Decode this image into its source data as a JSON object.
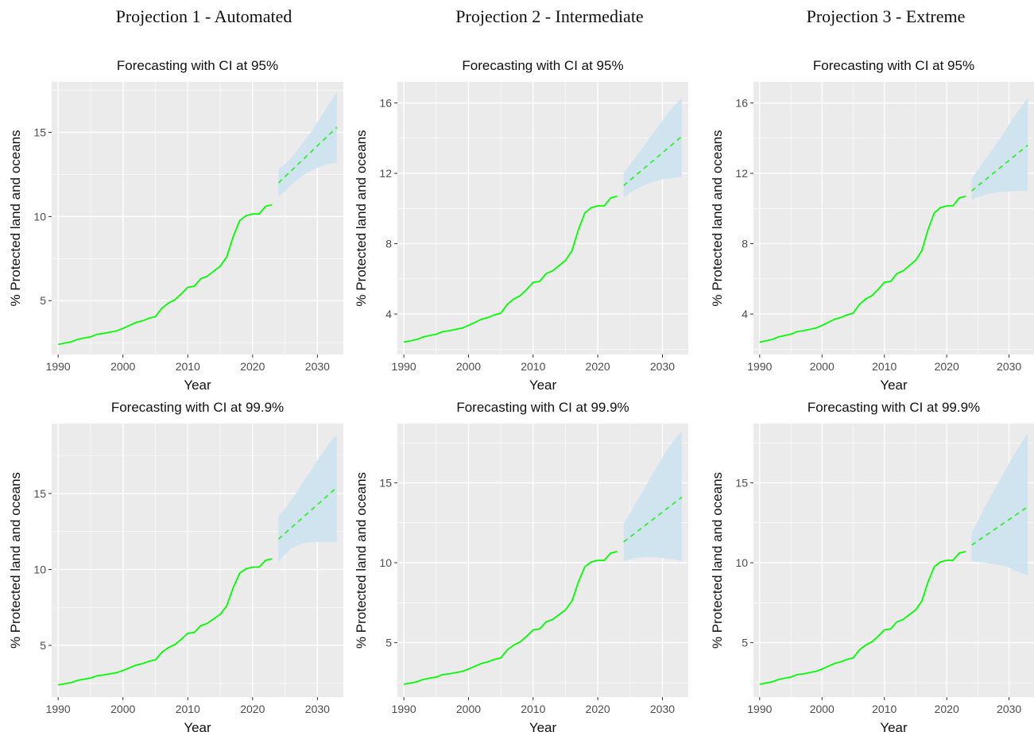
{
  "column_titles": [
    "Projection 1 - Automated",
    "Projection 2 - Intermediate",
    "Projection 3 - Extreme"
  ],
  "colors": {
    "panel_bg": "#ebebeb",
    "grid": "#ffffff",
    "observed_line": "#00ff00",
    "forecast_line": "#33ee33",
    "ci_band": "#cde4ee"
  },
  "chart_data": [
    {
      "type": "line",
      "title": "Forecasting with CI at 95%",
      "xlabel": "Year",
      "ylabel": "% Protected land and oceans",
      "xlim": [
        1989,
        2034
      ],
      "ylim": [
        1.8,
        18.0
      ],
      "xticks": [
        1990,
        2000,
        2010,
        2020,
        2030
      ],
      "yticks": [
        5,
        10,
        15
      ],
      "grid": true,
      "series": [
        {
          "x": [
            1990,
            1992,
            1993,
            1995,
            1996,
            1997,
            1999,
            2000,
            2002,
            2003,
            2004,
            2005,
            2006,
            2007,
            2008,
            2009,
            2010,
            2011,
            2012,
            2013,
            2014,
            2015,
            2016,
            2017,
            2018,
            2019,
            2020,
            2021,
            2022,
            2023
          ],
          "values": [
            2.4,
            2.55,
            2.7,
            2.85,
            3.0,
            3.05,
            3.2,
            3.35,
            3.7,
            3.8,
            3.95,
            4.05,
            4.55,
            4.85,
            5.05,
            5.4,
            5.8,
            5.85,
            6.3,
            6.45,
            6.75,
            7.05,
            7.6,
            8.8,
            9.75,
            10.05,
            10.15,
            10.15,
            10.6,
            10.7
          ]
        },
        {
          "x": [
            2024,
            2033
          ],
          "values": [
            12.0,
            15.3
          ]
        },
        {
          "x": [
            2024,
            2025,
            2026,
            2027,
            2028,
            2029,
            2030,
            2031,
            2032,
            2033
          ],
          "values": [
            12.8,
            13.1,
            13.5,
            14.0,
            14.5,
            15.0,
            15.6,
            16.2,
            16.8,
            17.4
          ]
        },
        {
          "x": [
            2024,
            2025,
            2026,
            2027,
            2028,
            2029,
            2030,
            2031,
            2032,
            2033
          ],
          "values": [
            11.2,
            11.5,
            11.9,
            12.2,
            12.5,
            12.7,
            12.9,
            13.05,
            13.15,
            13.2
          ]
        }
      ]
    },
    {
      "type": "line",
      "title": "Forecasting with CI at 95%",
      "xlabel": "Year",
      "ylabel": "% Protected land and oceans",
      "xlim": [
        1989,
        2034
      ],
      "ylim": [
        1.7,
        17.2
      ],
      "xticks": [
        1990,
        2000,
        2010,
        2020,
        2030
      ],
      "yticks": [
        4,
        8,
        12,
        16
      ],
      "grid": true,
      "series": [
        {
          "x": [
            1990,
            1992,
            1993,
            1995,
            1996,
            1997,
            1999,
            2000,
            2002,
            2003,
            2004,
            2005,
            2006,
            2007,
            2008,
            2009,
            2010,
            2011,
            2012,
            2013,
            2014,
            2015,
            2016,
            2017,
            2018,
            2019,
            2020,
            2021,
            2022,
            2023
          ],
          "values": [
            2.4,
            2.55,
            2.7,
            2.85,
            3.0,
            3.05,
            3.2,
            3.35,
            3.7,
            3.8,
            3.95,
            4.05,
            4.55,
            4.85,
            5.05,
            5.4,
            5.8,
            5.85,
            6.3,
            6.45,
            6.75,
            7.05,
            7.6,
            8.8,
            9.75,
            10.05,
            10.15,
            10.15,
            10.6,
            10.7
          ]
        },
        {
          "x": [
            2024,
            2033
          ],
          "values": [
            11.3,
            14.1
          ]
        },
        {
          "x": [
            2024,
            2025,
            2026,
            2027,
            2028,
            2029,
            2030,
            2031,
            2032,
            2033
          ],
          "values": [
            12.0,
            12.5,
            13.0,
            13.5,
            14.0,
            14.5,
            15.0,
            15.5,
            15.9,
            16.3
          ]
        },
        {
          "x": [
            2024,
            2025,
            2026,
            2027,
            2028,
            2029,
            2030,
            2031,
            2032,
            2033
          ],
          "values": [
            10.6,
            10.9,
            11.1,
            11.3,
            11.45,
            11.55,
            11.65,
            11.7,
            11.75,
            11.8
          ]
        }
      ]
    },
    {
      "type": "line",
      "title": "Forecasting with CI at 95%",
      "xlabel": "Year",
      "ylabel": "% Protected land and oceans",
      "xlim": [
        1989,
        2034
      ],
      "ylim": [
        1.7,
        17.2
      ],
      "xticks": [
        1990,
        2000,
        2010,
        2020,
        2030
      ],
      "yticks": [
        4,
        8,
        12,
        16
      ],
      "grid": true,
      "series": [
        {
          "x": [
            1990,
            1992,
            1993,
            1995,
            1996,
            1997,
            1999,
            2000,
            2002,
            2003,
            2004,
            2005,
            2006,
            2007,
            2008,
            2009,
            2010,
            2011,
            2012,
            2013,
            2014,
            2015,
            2016,
            2017,
            2018,
            2019,
            2020,
            2021,
            2022,
            2023
          ],
          "values": [
            2.4,
            2.55,
            2.7,
            2.85,
            3.0,
            3.05,
            3.2,
            3.35,
            3.7,
            3.8,
            3.95,
            4.05,
            4.55,
            4.85,
            5.05,
            5.4,
            5.8,
            5.85,
            6.3,
            6.45,
            6.75,
            7.05,
            7.6,
            8.8,
            9.75,
            10.05,
            10.15,
            10.15,
            10.6,
            10.7
          ]
        },
        {
          "x": [
            2024,
            2033
          ],
          "values": [
            11.0,
            13.6
          ]
        },
        {
          "x": [
            2024,
            2025,
            2026,
            2027,
            2028,
            2029,
            2030,
            2031,
            2032,
            2033
          ],
          "values": [
            11.7,
            12.2,
            12.7,
            13.2,
            13.7,
            14.2,
            14.8,
            15.3,
            15.8,
            16.3
          ]
        },
        {
          "x": [
            2024,
            2025,
            2026,
            2027,
            2028,
            2029,
            2030,
            2031,
            2032,
            2033
          ],
          "values": [
            10.5,
            10.65,
            10.75,
            10.85,
            10.9,
            10.95,
            10.97,
            11.0,
            11.0,
            11.0
          ]
        }
      ]
    },
    {
      "type": "line",
      "title": "Forecasting with CI at 99.9%",
      "xlabel": "Year",
      "ylabel": "% Protected land and oceans",
      "xlim": [
        1989,
        2034
      ],
      "ylim": [
        1.6,
        19.6
      ],
      "xticks": [
        1990,
        2000,
        2010,
        2020,
        2030
      ],
      "yticks": [
        5,
        10,
        15
      ],
      "grid": true,
      "series": [
        {
          "x": [
            1990,
            1992,
            1993,
            1995,
            1996,
            1997,
            1999,
            2000,
            2002,
            2003,
            2004,
            2005,
            2006,
            2007,
            2008,
            2009,
            2010,
            2011,
            2012,
            2013,
            2014,
            2015,
            2016,
            2017,
            2018,
            2019,
            2020,
            2021,
            2022,
            2023
          ],
          "values": [
            2.4,
            2.55,
            2.7,
            2.85,
            3.0,
            3.05,
            3.2,
            3.35,
            3.7,
            3.8,
            3.95,
            4.05,
            4.55,
            4.85,
            5.05,
            5.4,
            5.8,
            5.85,
            6.3,
            6.45,
            6.75,
            7.05,
            7.6,
            8.8,
            9.75,
            10.05,
            10.15,
            10.15,
            10.6,
            10.7
          ]
        },
        {
          "x": [
            2024,
            2033
          ],
          "values": [
            12.0,
            15.4
          ]
        },
        {
          "x": [
            2024,
            2025,
            2026,
            2027,
            2028,
            2029,
            2030,
            2031,
            2032,
            2033
          ],
          "values": [
            13.5,
            14.0,
            14.6,
            15.2,
            15.9,
            16.5,
            17.2,
            17.8,
            18.4,
            18.9
          ]
        },
        {
          "x": [
            2024,
            2025,
            2026,
            2027,
            2028,
            2029,
            2030,
            2031,
            2032,
            2033
          ],
          "values": [
            10.5,
            11.0,
            11.4,
            11.6,
            11.75,
            11.8,
            11.8,
            11.8,
            11.8,
            11.8
          ]
        }
      ]
    },
    {
      "type": "line",
      "title": "Forecasting with CI at 99.9%",
      "xlabel": "Year",
      "ylabel": "% Protected land and oceans",
      "xlim": [
        1989,
        2034
      ],
      "ylim": [
        1.6,
        18.7
      ],
      "xticks": [
        1990,
        2000,
        2010,
        2020,
        2030
      ],
      "yticks": [
        5,
        10,
        15
      ],
      "grid": true,
      "series": [
        {
          "x": [
            1990,
            1992,
            1993,
            1995,
            1996,
            1997,
            1999,
            2000,
            2002,
            2003,
            2004,
            2005,
            2006,
            2007,
            2008,
            2009,
            2010,
            2011,
            2012,
            2013,
            2014,
            2015,
            2016,
            2017,
            2018,
            2019,
            2020,
            2021,
            2022,
            2023
          ],
          "values": [
            2.4,
            2.55,
            2.7,
            2.85,
            3.0,
            3.05,
            3.2,
            3.35,
            3.7,
            3.8,
            3.95,
            4.05,
            4.55,
            4.85,
            5.05,
            5.4,
            5.8,
            5.85,
            6.3,
            6.45,
            6.75,
            7.05,
            7.6,
            8.8,
            9.75,
            10.05,
            10.15,
            10.15,
            10.6,
            10.7
          ]
        },
        {
          "x": [
            2024,
            2033
          ],
          "values": [
            11.3,
            14.1
          ]
        },
        {
          "x": [
            2024,
            2025,
            2026,
            2027,
            2028,
            2029,
            2030,
            2031,
            2032,
            2033
          ],
          "values": [
            12.5,
            13.1,
            13.8,
            14.5,
            15.2,
            15.9,
            16.6,
            17.2,
            17.8,
            18.2
          ]
        },
        {
          "x": [
            2024,
            2025,
            2026,
            2027,
            2028,
            2029,
            2030,
            2031,
            2032,
            2033
          ],
          "values": [
            10.1,
            10.2,
            10.3,
            10.35,
            10.35,
            10.35,
            10.3,
            10.25,
            10.2,
            10.1
          ]
        }
      ]
    },
    {
      "type": "line",
      "title": "Forecasting with CI at 99.9%",
      "xlabel": "Year",
      "ylabel": "% Protected land and oceans",
      "xlim": [
        1989,
        2034
      ],
      "ylim": [
        1.6,
        18.7
      ],
      "xticks": [
        1990,
        2000,
        2010,
        2020,
        2030
      ],
      "yticks": [
        5,
        10,
        15
      ],
      "grid": true,
      "series": [
        {
          "x": [
            1990,
            1992,
            1993,
            1995,
            1996,
            1997,
            1999,
            2000,
            2002,
            2003,
            2004,
            2005,
            2006,
            2007,
            2008,
            2009,
            2010,
            2011,
            2012,
            2013,
            2014,
            2015,
            2016,
            2017,
            2018,
            2019,
            2020,
            2021,
            2022,
            2023
          ],
          "values": [
            2.4,
            2.55,
            2.7,
            2.85,
            3.0,
            3.05,
            3.2,
            3.35,
            3.7,
            3.8,
            3.95,
            4.05,
            4.55,
            4.85,
            5.05,
            5.4,
            5.8,
            5.85,
            6.3,
            6.45,
            6.75,
            7.05,
            7.6,
            8.8,
            9.75,
            10.05,
            10.15,
            10.15,
            10.6,
            10.7
          ]
        },
        {
          "x": [
            2024,
            2033
          ],
          "values": [
            11.1,
            13.5
          ]
        },
        {
          "x": [
            2024,
            2025,
            2026,
            2027,
            2028,
            2029,
            2030,
            2031,
            2032,
            2033
          ],
          "values": [
            11.9,
            12.6,
            13.4,
            14.1,
            14.8,
            15.5,
            16.2,
            16.9,
            17.5,
            18.1
          ]
        },
        {
          "x": [
            2024,
            2025,
            2026,
            2027,
            2028,
            2029,
            2030,
            2031,
            2032,
            2033
          ],
          "values": [
            10.1,
            10.05,
            10.0,
            9.95,
            9.9,
            9.8,
            9.7,
            9.5,
            9.35,
            9.2
          ]
        }
      ]
    }
  ]
}
